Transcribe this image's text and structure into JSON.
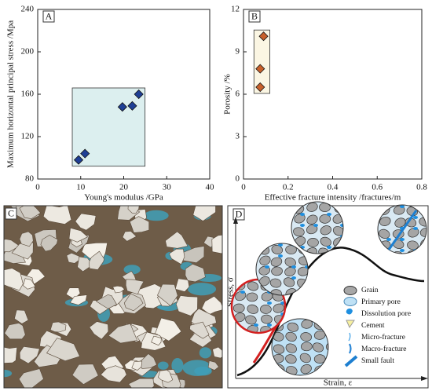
{
  "chart_data": [
    {
      "type": "scatter",
      "panel_label": "A",
      "x_label": "Young's modulus /GPa",
      "y_label": "Maximum horizontal principal stress /Mpa",
      "x": [
        9.5,
        11,
        19.7,
        22,
        23.5
      ],
      "values": [
        98,
        104,
        148,
        149,
        160
      ],
      "color": "#1f3f95",
      "box_color": "#dcefef",
      "xlim": [
        0,
        40
      ],
      "xticks": [
        0,
        10,
        20,
        30,
        40
      ],
      "ylim": [
        80,
        240
      ],
      "yticks": [
        80,
        120,
        160,
        200,
        240
      ]
    },
    {
      "type": "scatter",
      "panel_label": "B",
      "x_label": "Effective fracture intensity /fractures/m",
      "y_label": "Porosity /%",
      "x": [
        0.075,
        0.075,
        0.09
      ],
      "values": [
        6.5,
        7.8,
        10.1
      ],
      "color": "#c8602a",
      "box_color": "#fbf6e3",
      "xlim": [
        0,
        0.8
      ],
      "xticks": [
        0,
        0.2,
        0.4,
        0.6,
        0.8
      ],
      "ylim": [
        0,
        12
      ],
      "yticks": [
        0,
        3,
        6,
        9,
        12
      ]
    }
  ],
  "photo": {
    "panel_label": "C"
  },
  "diagram": {
    "panel_label": "D",
    "y_label": "Stress, σ",
    "x_label": "Strain, ε",
    "legend": [
      "Grain",
      "Primary pore",
      "Dissolution pore",
      "Cement",
      "Micro-fracture",
      "Macro-fracture",
      "Small fault"
    ]
  }
}
